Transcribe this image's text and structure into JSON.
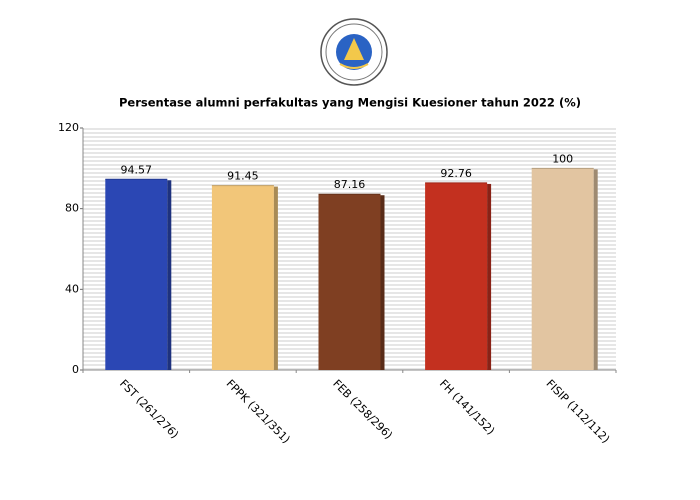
{
  "chart_data": {
    "type": "bar",
    "title": "Persentase alumni perfakultas yang Mengisi Kuesioner tahun 2022 (%)",
    "categories": [
      "FST (261/276)",
      "FPPK (321/351)",
      "FEB (258/296)",
      "FH (141/152)",
      "FISIP (112/112)"
    ],
    "values": [
      94.57,
      91.45,
      87.16,
      92.76,
      100
    ],
    "colors": [
      "#2b47b4",
      "#f2c679",
      "#7f3f22",
      "#c3301f",
      "#e2c5a1"
    ],
    "ylim": [
      0,
      120
    ],
    "yticks": [
      0,
      40,
      80,
      120
    ],
    "grid": true
  }
}
